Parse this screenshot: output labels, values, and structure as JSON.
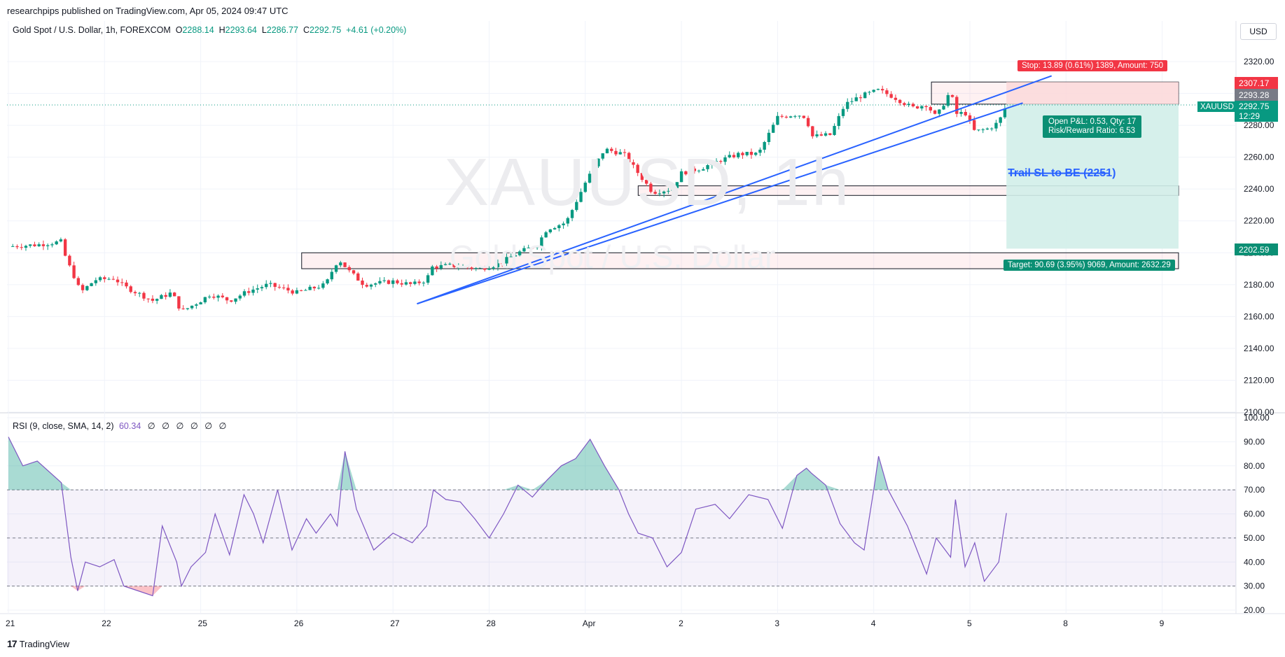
{
  "caption": "researchpips published on TradingView.com, Apr 05, 2024 09:47 UTC",
  "symbol": {
    "title": "Gold Spot / U.S. Dollar, 1h, FOREXCOM",
    "open_label": "O",
    "open": "2288.14",
    "high_label": "H",
    "high": "2293.64",
    "low_label": "L",
    "low": "2286.77",
    "close_label": "C",
    "close": "2292.75",
    "change": "+4.61 (+0.20%)"
  },
  "currency": "USD",
  "watermark": {
    "symbol": "XAUUSD, 1h",
    "name": "Gold Spot / U.S. Dollar"
  },
  "rsi": {
    "title": "RSI (9, close, SMA, 14, 2)",
    "value": "60.34",
    "zeros": "∅ ∅ ∅ ∅ ∅ ∅"
  },
  "labels": {
    "stop": "Stop: 13.89 (0.61%) 1389, Amount: 750",
    "target": "Target: 90.69 (3.95%) 9069, Amount: 2632.29",
    "pnl_line1": "Open P&L: 0.53, Qty: 17",
    "pnl_line2": "Risk/Reward Ratio: 6.53",
    "trail": "Trail SL to BE (2251)"
  },
  "price_tags": {
    "stop": "2307.17",
    "entry": "2293.28",
    "symbol": "XAUUSD",
    "last": "2292.75",
    "countdown": "12:29",
    "target": "2202.59"
  },
  "footer": {
    "logo_mark": "17",
    "logo_text": "TradingView"
  },
  "colors": {
    "up": "#089981",
    "down": "#f23645",
    "rsi": "#7e57c2",
    "trendline": "#2962ff",
    "stop_zone": "#fbd9db",
    "target_zone": "#d2eee9"
  },
  "chart_data": [
    {
      "type": "candlestick",
      "title": "Gold Spot / U.S. Dollar, 1h, FOREXCOM",
      "x_ticks": [
        "21",
        "22",
        "25",
        "26",
        "27",
        "28",
        "Apr",
        "2",
        "3",
        "4",
        "5",
        "8",
        "9"
      ],
      "y_ticks": [
        2100,
        2120,
        2140,
        2160,
        2180,
        2200,
        2220,
        2240,
        2260,
        2280,
        2300,
        2320
      ],
      "ylim": [
        2100,
        2325
      ],
      "close_path": [
        {
          "day": 0.0,
          "price": 2204
        },
        {
          "day": 0.3,
          "price": 2205
        },
        {
          "day": 0.55,
          "price": 2207
        },
        {
          "day": 0.6,
          "price": 2196
        },
        {
          "day": 0.7,
          "price": 2183
        },
        {
          "day": 0.75,
          "price": 2175
        },
        {
          "day": 0.9,
          "price": 2183
        },
        {
          "day": 1.1,
          "price": 2184
        },
        {
          "day": 1.2,
          "price": 2179
        },
        {
          "day": 1.5,
          "price": 2170
        },
        {
          "day": 1.7,
          "price": 2175
        },
        {
          "day": 1.8,
          "price": 2163
        },
        {
          "day": 2.0,
          "price": 2170
        },
        {
          "day": 2.1,
          "price": 2174
        },
        {
          "day": 2.3,
          "price": 2170
        },
        {
          "day": 2.5,
          "price": 2176
        },
        {
          "day": 2.7,
          "price": 2180
        },
        {
          "day": 3.0,
          "price": 2175
        },
        {
          "day": 3.3,
          "price": 2180
        },
        {
          "day": 3.4,
          "price": 2193
        },
        {
          "day": 3.45,
          "price": 2195
        },
        {
          "day": 3.55,
          "price": 2188
        },
        {
          "day": 3.7,
          "price": 2180
        },
        {
          "day": 4.0,
          "price": 2182
        },
        {
          "day": 4.2,
          "price": 2180
        },
        {
          "day": 4.35,
          "price": 2183
        },
        {
          "day": 4.4,
          "price": 2191
        },
        {
          "day": 4.6,
          "price": 2192
        },
        {
          "day": 4.9,
          "price": 2190
        },
        {
          "day": 5.1,
          "price": 2193
        },
        {
          "day": 5.3,
          "price": 2200
        },
        {
          "day": 5.5,
          "price": 2205
        },
        {
          "day": 5.6,
          "price": 2215
        },
        {
          "day": 5.8,
          "price": 2219
        },
        {
          "day": 6.0,
          "price": 2244
        },
        {
          "day": 6.2,
          "price": 2265
        },
        {
          "day": 6.4,
          "price": 2262
        },
        {
          "day": 6.55,
          "price": 2250
        },
        {
          "day": 6.7,
          "price": 2238
        },
        {
          "day": 6.9,
          "price": 2240
        },
        {
          "day": 7.0,
          "price": 2250
        },
        {
          "day": 7.2,
          "price": 2253
        },
        {
          "day": 7.4,
          "price": 2258
        },
        {
          "day": 7.6,
          "price": 2262
        },
        {
          "day": 7.8,
          "price": 2262
        },
        {
          "day": 8.0,
          "price": 2285
        },
        {
          "day": 8.2,
          "price": 2287
        },
        {
          "day": 8.3,
          "price": 2285
        },
        {
          "day": 8.35,
          "price": 2273
        },
        {
          "day": 8.55,
          "price": 2274
        },
        {
          "day": 8.7,
          "price": 2293
        },
        {
          "day": 8.85,
          "price": 2298
        },
        {
          "day": 9.05,
          "price": 2302
        },
        {
          "day": 9.2,
          "price": 2298
        },
        {
          "day": 9.4,
          "price": 2291
        },
        {
          "day": 9.55,
          "price": 2293
        },
        {
          "day": 9.65,
          "price": 2285
        },
        {
          "day": 9.75,
          "price": 2296
        },
        {
          "day": 9.8,
          "price": 2302
        },
        {
          "day": 9.85,
          "price": 2287
        },
        {
          "day": 9.95,
          "price": 2288
        },
        {
          "day": 10.05,
          "price": 2276
        },
        {
          "day": 10.2,
          "price": 2278
        },
        {
          "day": 10.3,
          "price": 2282
        },
        {
          "day": 10.38,
          "price": 2292.75
        }
      ],
      "zones": [
        {
          "from_day": 3.05,
          "to_day": 12.17,
          "low": 2190,
          "high": 2200
        },
        {
          "from_day": 6.55,
          "to_day": 12.17,
          "low": 2236,
          "high": 2242
        },
        {
          "from_day": 9.6,
          "to_day": 12.17,
          "low": 2293.28,
          "high": 2307.17
        }
      ],
      "position": {
        "entry": 2293.28,
        "stop": 2307.17,
        "target": 2202.59,
        "from_day": 10.38,
        "to_day": 12.17
      },
      "trendlines": [
        {
          "from": {
            "day": 4.25,
            "price": 2168
          },
          "to": {
            "day": 10.85,
            "price": 2311
          }
        },
        {
          "from": {
            "day": 4.25,
            "price": 2168
          },
          "to": {
            "day": 10.55,
            "price": 2294
          }
        }
      ],
      "trail_line": {
        "from_day": 10.4,
        "to_day": 11.45,
        "price": 2242
      }
    },
    {
      "type": "line",
      "title": "RSI (9, close, SMA, 14, 2)",
      "y_ticks": [
        20,
        30,
        40,
        50,
        60,
        70,
        80,
        90,
        100
      ],
      "ylim": [
        18,
        100
      ],
      "bands": {
        "upper": 70,
        "middle": 50,
        "lower": 30
      },
      "x": [
        0.0,
        0.15,
        0.3,
        0.55,
        0.65,
        0.72,
        0.8,
        0.95,
        1.1,
        1.2,
        1.35,
        1.5,
        1.6,
        1.75,
        1.8,
        1.9,
        2.05,
        2.15,
        2.3,
        2.45,
        2.55,
        2.65,
        2.8,
        2.95,
        3.1,
        3.2,
        3.35,
        3.42,
        3.5,
        3.62,
        3.8,
        4.0,
        4.2,
        4.35,
        4.42,
        4.55,
        4.7,
        4.85,
        5.0,
        5.15,
        5.3,
        5.45,
        5.6,
        5.75,
        5.9,
        6.05,
        6.2,
        6.35,
        6.45,
        6.55,
        6.7,
        6.85,
        7.0,
        7.15,
        7.35,
        7.5,
        7.7,
        7.9,
        8.05,
        8.2,
        8.3,
        8.35,
        8.5,
        8.65,
        8.8,
        8.9,
        9.0,
        9.05,
        9.15,
        9.35,
        9.55,
        9.65,
        9.8,
        9.85,
        9.95,
        10.05,
        10.15,
        10.3,
        10.38
      ],
      "values": [
        92,
        80,
        82,
        73,
        42,
        28,
        40,
        38,
        41,
        30,
        28,
        26,
        55,
        40,
        30,
        38,
        44,
        60,
        43,
        68,
        60,
        48,
        70,
        45,
        58,
        52,
        60,
        55,
        86,
        62,
        45,
        52,
        48,
        55,
        70,
        66,
        65,
        58,
        50,
        60,
        72,
        67,
        74,
        80,
        83,
        91,
        80,
        70,
        60,
        52,
        50,
        38,
        44,
        62,
        64,
        58,
        68,
        66,
        54,
        76,
        79,
        77,
        72,
        56,
        48,
        45,
        70,
        84,
        70,
        55,
        35,
        50,
        42,
        66,
        38,
        48,
        32,
        40,
        60.34
      ]
    }
  ]
}
